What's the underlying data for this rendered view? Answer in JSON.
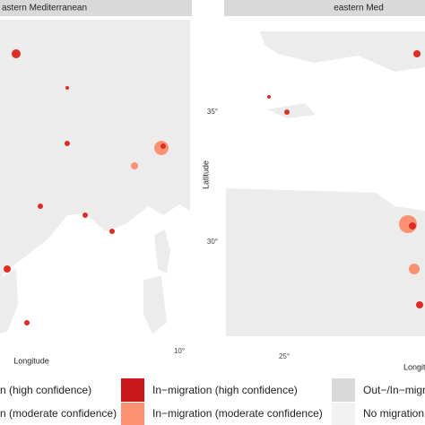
{
  "panels": [
    {
      "strip": "astern Mediterranean",
      "x_axis_title": "Longitude",
      "x_tick": "10°"
    },
    {
      "strip": "eastern Med",
      "x_axis_title": "Longitu",
      "x_tick": "25°",
      "y_axis_title": "Latitude",
      "y_ticks": [
        "35°",
        "30°"
      ]
    }
  ],
  "legend": {
    "items": [
      "n (high confidence)",
      "n (moderate confidence)",
      "In−migration (high confidence)",
      "In−migration (moderate confidence)",
      "Out−/In−migr",
      "No migration"
    ]
  }
}
